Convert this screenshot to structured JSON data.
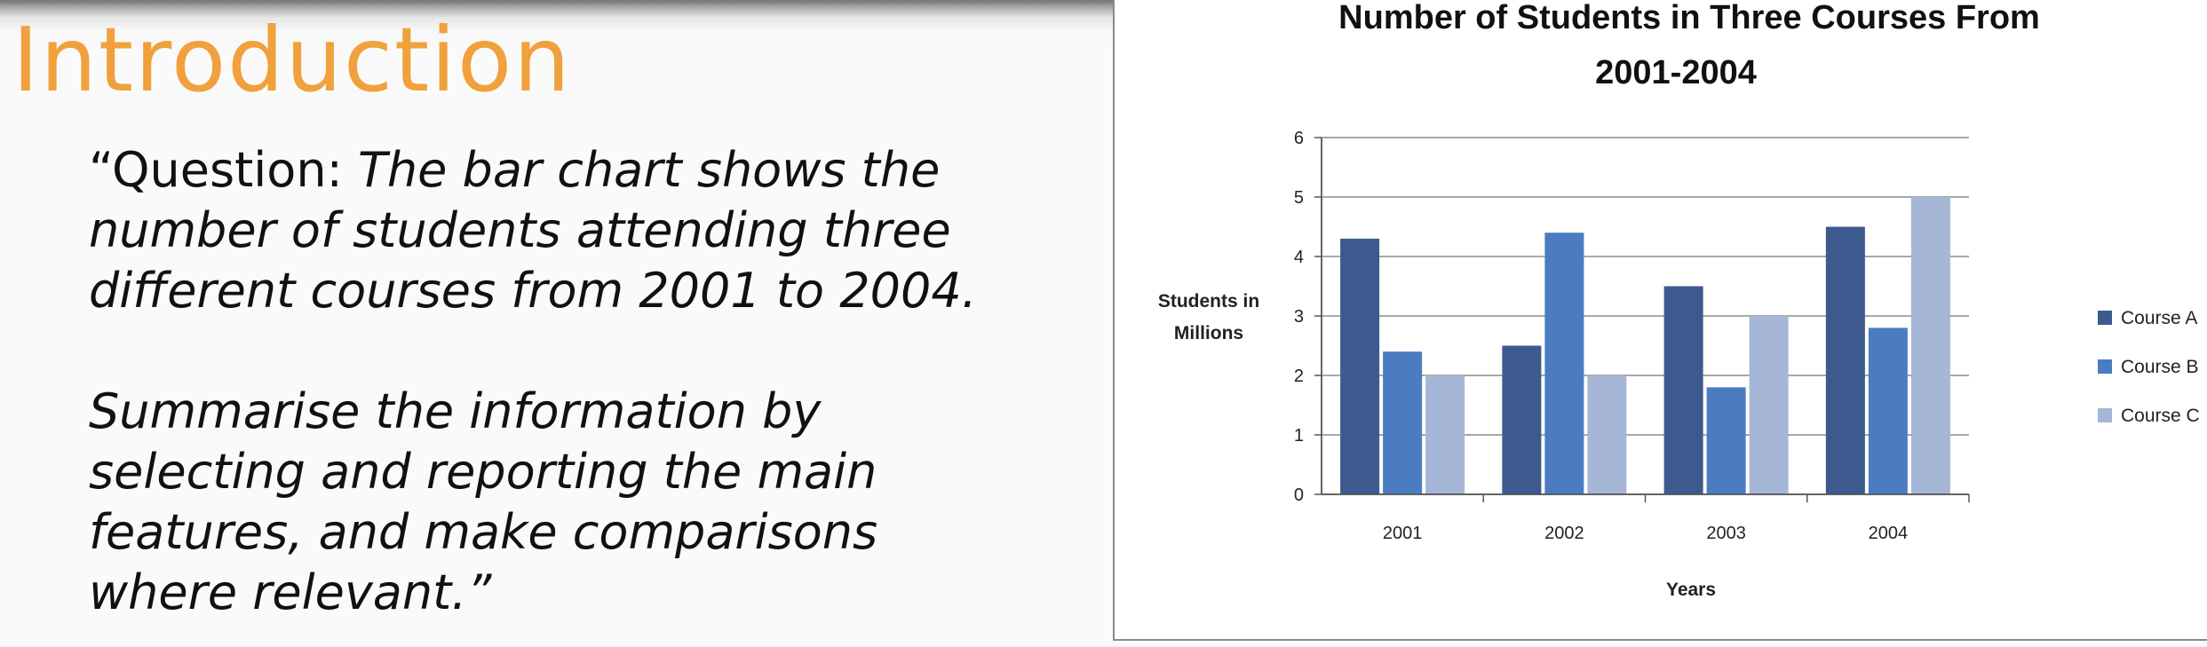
{
  "slide": {
    "title": "Introduction",
    "question_prefix": "“Question: ",
    "question_lines": [
      "The bar chart shows the",
      "number of students attending three",
      "different courses from 2001 to 2004."
    ],
    "instruction_lines": [
      "Summarise the information by",
      "selecting and reporting the main",
      "features, and make comparisons",
      "where relevant.”"
    ]
  },
  "chart_data": {
    "type": "bar",
    "title_lines": [
      "Number of Students in Three Courses From",
      "2001-2004"
    ],
    "categories": [
      "2001",
      "2002",
      "2003",
      "2004"
    ],
    "series": [
      {
        "name": "Course A",
        "color": "#3c5a8e",
        "values": [
          4.3,
          2.5,
          3.5,
          4.5
        ]
      },
      {
        "name": "Course B",
        "color": "#4b7cc1",
        "values": [
          2.4,
          4.4,
          1.8,
          2.8
        ]
      },
      {
        "name": "Course C",
        "color": "#a6b6d6",
        "values": [
          2.0,
          2.0,
          3.0,
          5.0
        ]
      }
    ],
    "xlabel": "Years",
    "ylabel_lines": [
      "Students in",
      "Millions"
    ],
    "ylim": [
      0,
      6
    ],
    "yticks": [
      0,
      1,
      2,
      3,
      4,
      5,
      6
    ],
    "grid": true,
    "legend_position": "right"
  }
}
